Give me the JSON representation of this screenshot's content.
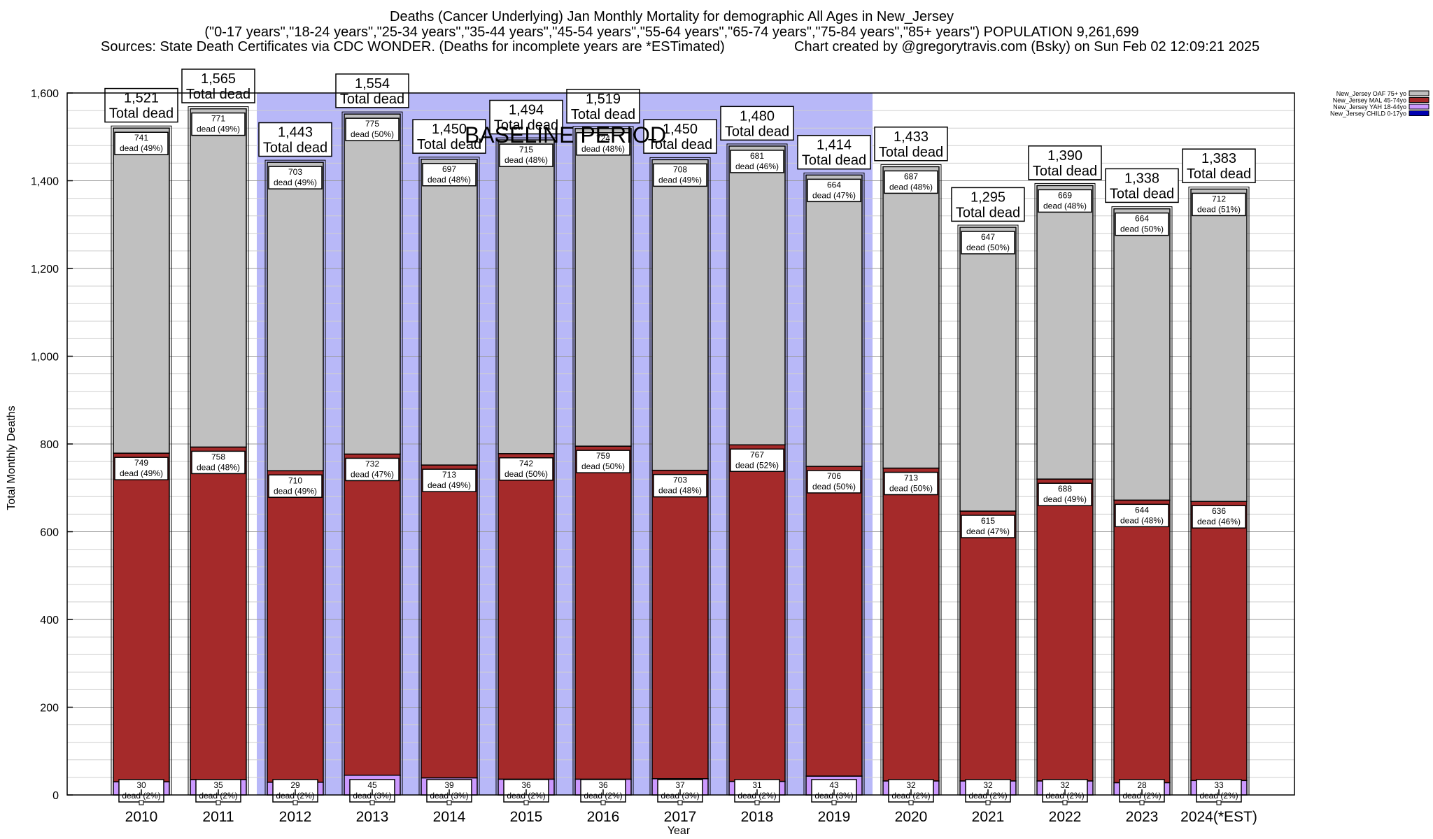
{
  "title": {
    "line1": "Deaths (Cancer Underlying) Jan Monthly Mortality for demographic All Ages in New_Jersey",
    "line2": "(\"0-17 years\",\"18-24 years\",\"25-34 years\",\"35-44 years\",\"45-54 years\",\"55-64 years\",\"65-74 years\",\"75-84 years\",\"85+ years\") POPULATION 9,261,699",
    "line3_left": "Sources: State Death Certificates via CDC WONDER. (Deaths for incomplete years are *ESTimated)",
    "line3_right": "Chart created by @gregorytravis.com (Bsky) on Sun Feb 02 12:09:21 2025"
  },
  "chart_data": {
    "type": "bar",
    "stacked": true,
    "categories": [
      "2010",
      "2011",
      "2012",
      "2013",
      "2014",
      "2015",
      "2016",
      "2017",
      "2018",
      "2019",
      "2020",
      "2021",
      "2022",
      "2023",
      "2024(*EST)"
    ],
    "xlabel": "Year",
    "ylabel": "Total Monthly Deaths",
    "ylim": [
      0,
      1600
    ],
    "yticks": [
      0,
      200,
      400,
      600,
      800,
      1000,
      1200,
      1400,
      1600
    ],
    "ytick_labels": [
      "0",
      "200",
      "400",
      "600",
      "800",
      "1,000",
      "1,200",
      "1,400",
      "1,600"
    ],
    "grid": true,
    "legend_position": "top-right",
    "baseline_period": {
      "label": "BASELINE PERIOD",
      "start": "2012",
      "end": "2019",
      "color": "#b8b8f8"
    },
    "series": [
      {
        "name": "New_Jersey CHILD 0-17yo",
        "color": "#0000b0",
        "values": [
          0,
          0,
          0,
          0,
          0,
          0,
          0,
          0,
          0,
          0,
          0,
          0,
          0,
          0,
          0
        ]
      },
      {
        "name": "New_Jersey YAH 18-44yo",
        "color": "#cc99ff",
        "values": [
          30,
          35,
          29,
          45,
          39,
          36,
          36,
          37,
          31,
          43,
          32,
          32,
          32,
          28,
          33
        ],
        "labels": [
          "30",
          "35",
          "29",
          "45",
          "39",
          "36",
          "36",
          "37",
          "31",
          "43",
          "32",
          "32",
          "32",
          "28",
          "33"
        ],
        "pct_labels": [
          "dead (2%)",
          "dead (2%)",
          "dead (2%)",
          "dead (3%)",
          "dead (3%)",
          "dead (2%)",
          "dead (2%)",
          "dead (3%)",
          "dead (2%)",
          "dead (3%)",
          "dead (2%)",
          "dead (2%)",
          "dead (2%)",
          "dead (2%)",
          "dead (2%)"
        ]
      },
      {
        "name": "New_Jersey MAL 45-74yo",
        "color": "#a52a2a",
        "values": [
          749,
          758,
          710,
          732,
          713,
          742,
          759,
          703,
          767,
          706,
          713,
          615,
          688,
          644,
          636
        ],
        "labels": [
          "749",
          "758",
          "710",
          "732",
          "713",
          "742",
          "759",
          "703",
          "767",
          "706",
          "713",
          "615",
          "688",
          "644",
          "636"
        ],
        "pct_labels": [
          "dead (49%)",
          "dead (48%)",
          "dead (49%)",
          "dead (47%)",
          "dead (49%)",
          "dead (50%)",
          "dead (50%)",
          "dead (48%)",
          "dead (52%)",
          "dead (50%)",
          "dead (50%)",
          "dead (47%)",
          "dead (49%)",
          "dead (48%)",
          "dead (46%)"
        ]
      },
      {
        "name": "New_Jersey OAF 75+ yo",
        "color": "#c0c0c0",
        "values": [
          741,
          771,
          703,
          775,
          697,
          715,
          724,
          708,
          681,
          664,
          687,
          647,
          669,
          664,
          712
        ],
        "labels": [
          "741",
          "771",
          "703",
          "775",
          "697",
          "715",
          "724",
          "708",
          "681",
          "664",
          "687",
          "647",
          "669",
          "664",
          "712"
        ],
        "pct_labels": [
          "dead (49%)",
          "dead (49%)",
          "dead (49%)",
          "dead (50%)",
          "dead (48%)",
          "dead (48%)",
          "dead (48%)",
          "dead (49%)",
          "dead (46%)",
          "dead (47%)",
          "dead (48%)",
          "dead (50%)",
          "dead (48%)",
          "dead (50%)",
          "dead (51%)"
        ]
      }
    ],
    "totals": [
      1521,
      1565,
      1443,
      1554,
      1450,
      1494,
      1519,
      1450,
      1480,
      1414,
      1433,
      1295,
      1390,
      1338,
      1383
    ],
    "total_labels": [
      "1,521",
      "1,565",
      "1,443",
      "1,554",
      "1,450",
      "1,494",
      "1,519",
      "1,450",
      "1,480",
      "1,414",
      "1,433",
      "1,295",
      "1,390",
      "1,338",
      "1,383"
    ],
    "total_suffix": "Total dead",
    "legend_entries": [
      {
        "label": "New_Jersey OAF 75+ yo",
        "color": "#c0c0c0"
      },
      {
        "label": "New_Jersey MAL 45-74yo",
        "color": "#a52a2a"
      },
      {
        "label": "New_Jersey YAH 18-44yo",
        "color": "#cc99ff"
      },
      {
        "label": "New_Jersey CHILD 0-17yo",
        "color": "#0000b0"
      }
    ]
  }
}
